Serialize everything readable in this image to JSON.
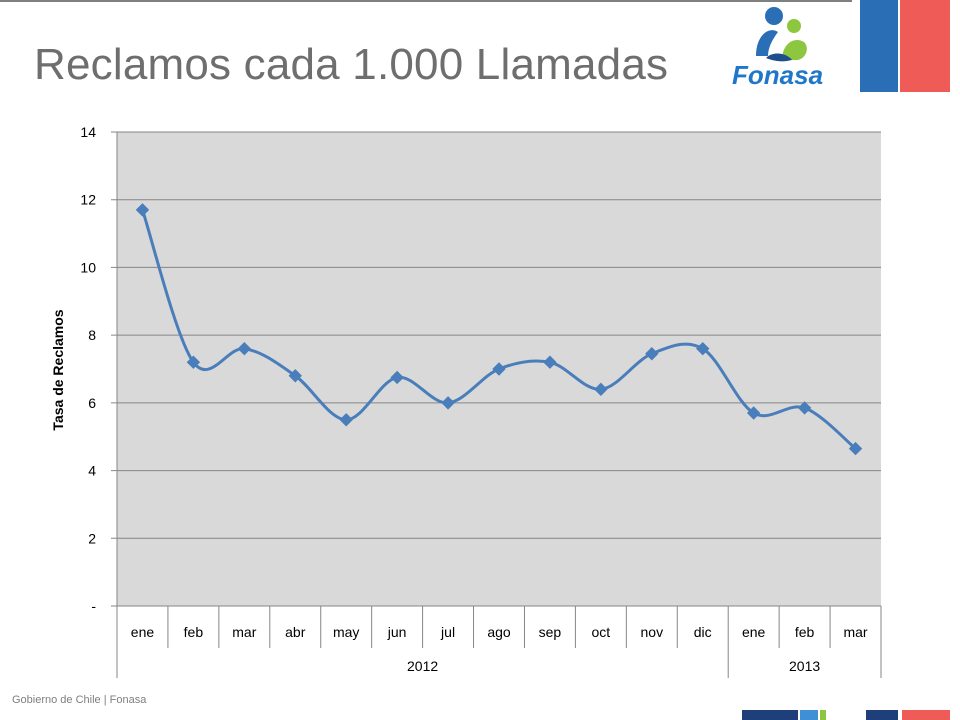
{
  "slide": {
    "title": "Reclamos cada 1.000 Llamadas",
    "footer": "Gobierno de Chile | Fonasa",
    "logo_text": "Fonasa"
  },
  "colors": {
    "series": "#4a7ebb",
    "plot_bg": "#d9d9d9",
    "flag_blue": "#2a6fb5",
    "flag_red": "#ef5b57",
    "logo_blue": "#1f77c9",
    "logo_green": "#8dc63f"
  },
  "chart_data": {
    "type": "line",
    "ylabel": "Tasa de Reclamos",
    "ylim": [
      0,
      14
    ],
    "yticks": [
      0,
      2,
      4,
      6,
      8,
      10,
      12,
      14
    ],
    "ytick_labels": [
      "-",
      "2",
      "4",
      "6",
      "8",
      "10",
      "12",
      "14"
    ],
    "categories": [
      "ene",
      "feb",
      "mar",
      "abr",
      "may",
      "jun",
      "jul",
      "ago",
      "sep",
      "oct",
      "nov",
      "dic",
      "ene",
      "feb",
      "mar"
    ],
    "year_groups": [
      {
        "label": "2012",
        "count": 12
      },
      {
        "label": "2013",
        "count": 3
      }
    ],
    "series": [
      {
        "values": [
          11.7,
          7.2,
          7.6,
          6.8,
          5.5,
          6.75,
          6.0,
          7.0,
          7.2,
          6.4,
          7.45,
          7.6,
          5.7,
          5.85,
          4.65
        ]
      }
    ],
    "marker": "diamond",
    "smooth": true,
    "grid": true,
    "legend": "none"
  }
}
